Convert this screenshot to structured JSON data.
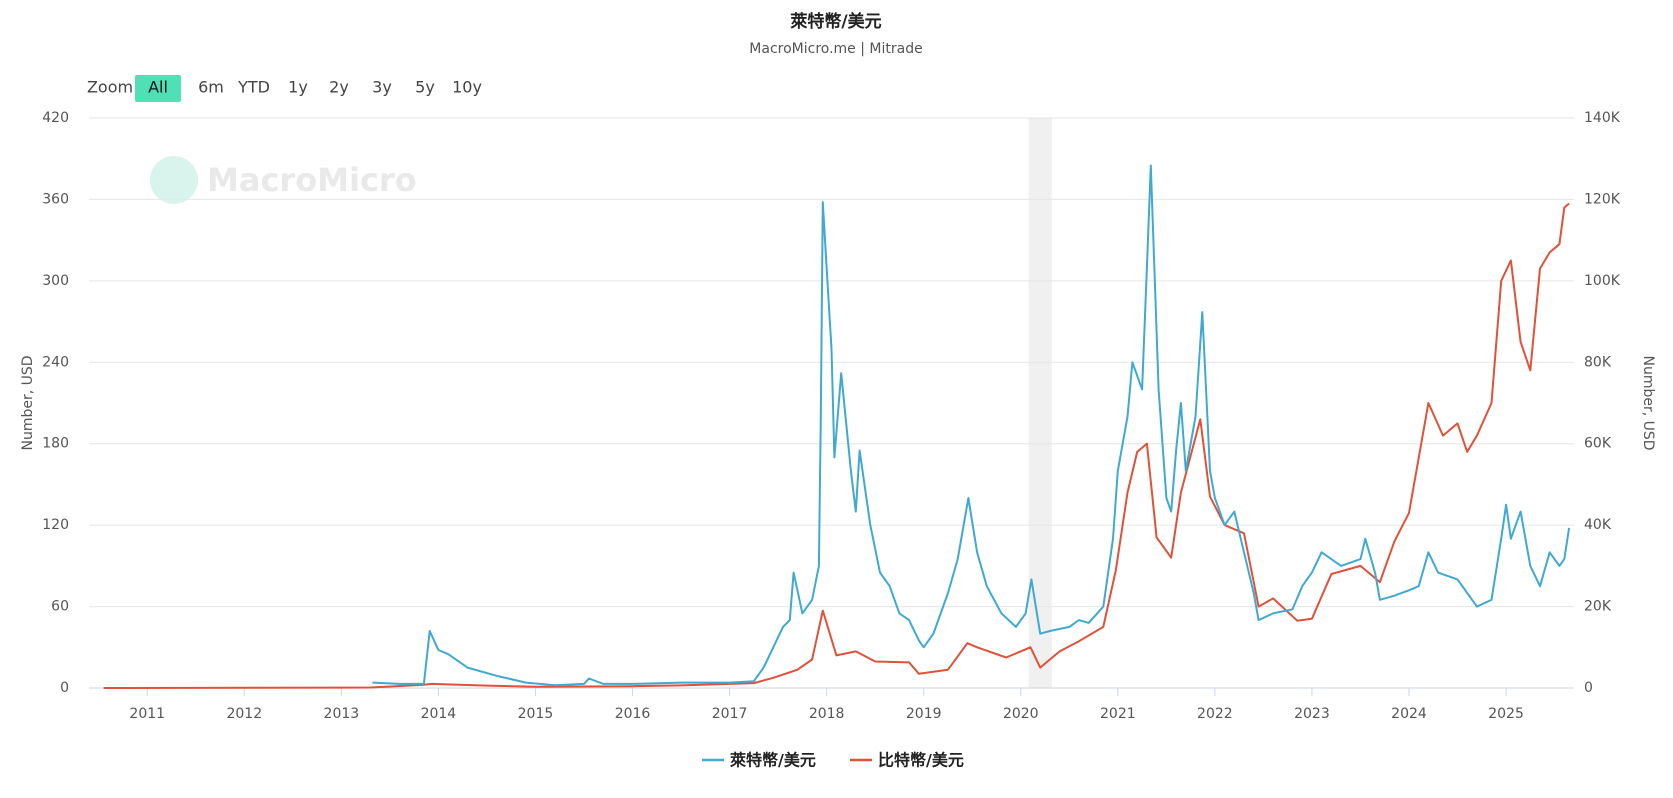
{
  "chart_data": {
    "type": "line",
    "title": "萊特幣/美元",
    "subtitle": "MacroMicro.me | Mitrade",
    "watermark": "MacroMicro",
    "zoom_label": "Zoom",
    "zoom_buttons": [
      "All",
      "6m",
      "YTD",
      "1y",
      "2y",
      "3y",
      "5y",
      "10y"
    ],
    "zoom_selected": "All",
    "y_label": "Number, USD",
    "y2_label": "Number, USD",
    "xlim": [
      2010.4,
      2025.7
    ],
    "xticks": [
      2011,
      2012,
      2013,
      2014,
      2015,
      2016,
      2017,
      2018,
      2019,
      2020,
      2021,
      2022,
      2023,
      2024,
      2025
    ],
    "ylim": [
      0,
      420
    ],
    "yticks": [
      0,
      60,
      120,
      180,
      240,
      300,
      360,
      420
    ],
    "y2lim": [
      0,
      140000
    ],
    "y2ticks": [
      0,
      {
        "value": 20000,
        "label": "20K"
      },
      {
        "value": 40000,
        "label": "40K"
      },
      {
        "value": 60000,
        "label": "60K"
      },
      {
        "value": 80000,
        "label": "80K"
      },
      {
        "value": 100000,
        "label": "100K"
      },
      {
        "value": 120000,
        "label": "120K"
      },
      {
        "value": 140000,
        "label": "140K"
      }
    ],
    "grid": true,
    "legend": "bottom",
    "shaded_ranges": [
      [
        2020.08,
        2020.32
      ]
    ],
    "series": [
      {
        "name": "萊特幣/美元",
        "color": "#3fa9d1",
        "axis": "y",
        "x": [
          2013.32,
          2013.6,
          2013.85,
          2013.91,
          2014.0,
          2014.1,
          2014.3,
          2014.6,
          2014.9,
          2015.2,
          2015.5,
          2015.55,
          2015.7,
          2016.0,
          2016.5,
          2017.0,
          2017.25,
          2017.35,
          2017.45,
          2017.55,
          2017.62,
          2017.66,
          2017.75,
          2017.85,
          2017.92,
          2017.94,
          2017.96,
          2018.0,
          2018.05,
          2018.08,
          2018.15,
          2018.25,
          2018.3,
          2018.34,
          2018.45,
          2018.55,
          2018.65,
          2018.75,
          2018.85,
          2018.95,
          2019.0,
          2019.1,
          2019.25,
          2019.35,
          2019.46,
          2019.55,
          2019.65,
          2019.8,
          2019.95,
          2020.05,
          2020.11,
          2020.2,
          2020.3,
          2020.5,
          2020.6,
          2020.7,
          2020.85,
          2020.95,
          2021.0,
          2021.1,
          2021.15,
          2021.25,
          2021.3,
          2021.34,
          2021.42,
          2021.5,
          2021.55,
          2021.6,
          2021.65,
          2021.7,
          2021.8,
          2021.87,
          2021.95,
          2022.0,
          2022.1,
          2022.2,
          2022.3,
          2022.4,
          2022.45,
          2022.6,
          2022.8,
          2022.9,
          2023.0,
          2023.1,
          2023.3,
          2023.5,
          2023.55,
          2023.65,
          2023.7,
          2023.85,
          2024.0,
          2024.1,
          2024.2,
          2024.3,
          2024.5,
          2024.6,
          2024.7,
          2024.85,
          2024.95,
          2025.0,
          2025.05,
          2025.15,
          2025.25,
          2025.35,
          2025.45,
          2025.55,
          2025.6,
          2025.65
        ],
        "values": [
          4,
          3,
          3,
          42,
          28,
          25,
          15,
          9,
          4,
          2,
          3,
          7,
          3,
          3,
          4,
          4,
          5,
          15,
          30,
          45,
          50,
          85,
          55,
          65,
          90,
          200,
          358,
          310,
          250,
          170,
          232,
          160,
          130,
          175,
          120,
          85,
          75,
          55,
          50,
          35,
          30,
          40,
          70,
          95,
          140,
          100,
          75,
          55,
          45,
          55,
          80,
          40,
          42,
          45,
          50,
          48,
          60,
          110,
          160,
          200,
          240,
          220,
          310,
          385,
          220,
          140,
          130,
          175,
          210,
          160,
          200,
          277,
          160,
          140,
          120,
          130,
          100,
          70,
          50,
          55,
          58,
          75,
          85,
          100,
          90,
          95,
          110,
          85,
          65,
          68,
          72,
          75,
          100,
          85,
          80,
          70,
          60,
          65,
          110,
          135,
          110,
          130,
          90,
          75,
          100,
          90,
          95,
          118
        ]
      },
      {
        "name": "比特幣/美元",
        "color": "#e0513a",
        "axis": "y2",
        "x": [
          2010.55,
          2013.0,
          2013.3,
          2013.85,
          2013.93,
          2014.5,
          2015.0,
          2016.0,
          2016.5,
          2017.0,
          2017.25,
          2017.45,
          2017.7,
          2017.85,
          2017.96,
          2018.1,
          2018.3,
          2018.5,
          2018.85,
          2018.95,
          2019.25,
          2019.45,
          2019.55,
          2019.85,
          2020.1,
          2020.2,
          2020.4,
          2020.6,
          2020.85,
          2020.98,
          2021.1,
          2021.2,
          2021.3,
          2021.4,
          2021.55,
          2021.65,
          2021.85,
          2021.95,
          2022.1,
          2022.3,
          2022.45,
          2022.6,
          2022.85,
          2023.0,
          2023.2,
          2023.5,
          2023.7,
          2023.85,
          2024.0,
          2024.2,
          2024.35,
          2024.5,
          2024.6,
          2024.7,
          2024.85,
          2024.95,
          2025.05,
          2025.15,
          2025.25,
          2025.35,
          2025.45,
          2025.55,
          2025.6,
          2025.65
        ],
        "values": [
          0,
          100,
          130,
          800,
          1000,
          600,
          300,
          430,
          650,
          1000,
          1200,
          2500,
          4500,
          7000,
          19000,
          8000,
          9000,
          6500,
          6300,
          3500,
          4500,
          11000,
          10000,
          7500,
          10000,
          5000,
          9000,
          11500,
          15000,
          29000,
          48000,
          58000,
          60000,
          37000,
          32000,
          48000,
          66000,
          47000,
          40000,
          38000,
          20000,
          22000,
          16500,
          17000,
          28000,
          30000,
          26000,
          36000,
          43000,
          70000,
          62000,
          65000,
          58000,
          62000,
          70000,
          100000,
          105000,
          85000,
          78000,
          103000,
          107000,
          109000,
          118000,
          119000
        ]
      }
    ]
  }
}
